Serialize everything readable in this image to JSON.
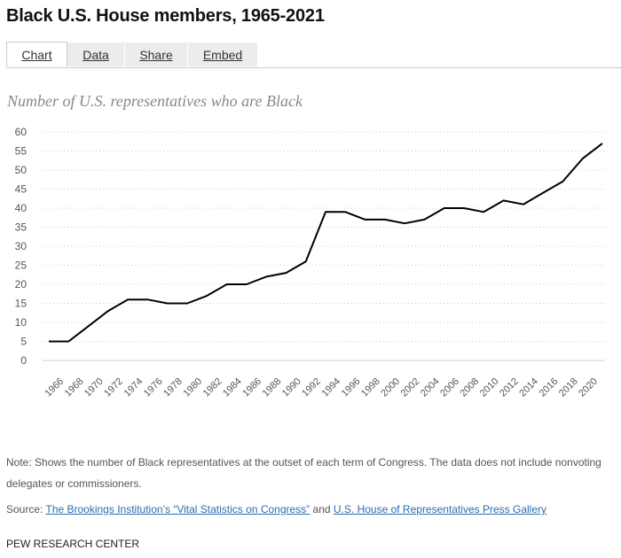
{
  "title": "Black U.S. House members, 1965-2021",
  "tabs": [
    {
      "label": "Chart",
      "active": true
    },
    {
      "label": "Data"
    },
    {
      "label": "Share"
    },
    {
      "label": "Embed"
    }
  ],
  "subtitle": "Number of U.S. representatives who are Black",
  "chart_data": {
    "type": "line",
    "title": "Number of U.S. representatives who are Black",
    "xlim": [
      1965,
      2021
    ],
    "ylim": [
      0,
      60
    ],
    "yticks": [
      0,
      5,
      10,
      15,
      20,
      25,
      30,
      35,
      40,
      45,
      50,
      55,
      60
    ],
    "xticks": [
      1966,
      1968,
      1970,
      1972,
      1974,
      1976,
      1978,
      1980,
      1982,
      1984,
      1986,
      1988,
      1990,
      1992,
      1994,
      1996,
      1998,
      2000,
      2002,
      2004,
      2006,
      2008,
      2010,
      2012,
      2014,
      2016,
      2018,
      2020
    ],
    "grid": true,
    "line_color": "#000000",
    "x": [
      1965,
      1967,
      1969,
      1971,
      1973,
      1975,
      1977,
      1979,
      1981,
      1983,
      1985,
      1987,
      1989,
      1991,
      1993,
      1995,
      1997,
      1999,
      2001,
      2003,
      2005,
      2007,
      2009,
      2011,
      2013,
      2015,
      2017,
      2019,
      2021
    ],
    "values": [
      5,
      5,
      9,
      13,
      16,
      16,
      15,
      15,
      17,
      20,
      20,
      22,
      23,
      26,
      39,
      39,
      37,
      37,
      36,
      37,
      40,
      40,
      39,
      42,
      41,
      44,
      47,
      53,
      57
    ]
  },
  "note": "Note: Shows the number of Black representatives at the outset of each term of Congress. The data does not include nonvoting delegates or commissioners.",
  "source": {
    "prefix": "Source: ",
    "link1": "The Brookings Institution’s “Vital Statistics on Congress”",
    "mid": " and ",
    "link2": "U.S. House of Representatives Press Gallery"
  },
  "credit": "PEW RESEARCH CENTER"
}
